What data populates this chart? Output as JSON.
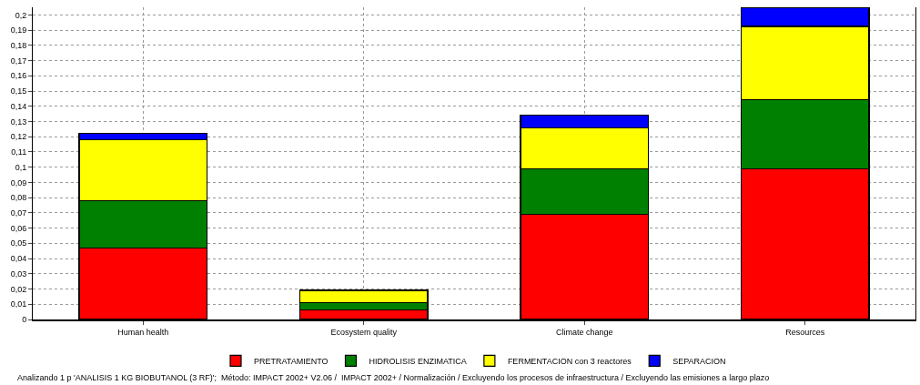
{
  "chart_data": {
    "type": "bar",
    "stacked": true,
    "categories": [
      "Human health",
      "Ecosystem quality",
      "Climate change",
      "Resources"
    ],
    "series": [
      {
        "name": "PRETRATAMIENTO",
        "color": "#ff0000",
        "values": [
          0.047,
          0.0061,
          0.069,
          0.099
        ]
      },
      {
        "name": "HIDROLISIS ENZIMATICA",
        "color": "#008000",
        "values": [
          0.031,
          0.0048,
          0.03,
          0.0455
        ]
      },
      {
        "name": "FERMENTACION con 3 reactores",
        "color": "#ffff00",
        "values": [
          0.04,
          0.0079,
          0.0267,
          0.048
        ]
      },
      {
        "name": "SEPARACION",
        "color": "#0000ff",
        "values": [
          0.004,
          0.0004,
          0.0085,
          0.012
        ]
      }
    ],
    "ylim": [
      0,
      0.205
    ],
    "yticks": [
      {
        "value": 0,
        "label": "0"
      },
      {
        "value": 0.01,
        "label": "0,01"
      },
      {
        "value": 0.02,
        "label": "0,02"
      },
      {
        "value": 0.03,
        "label": "0,03"
      },
      {
        "value": 0.04,
        "label": "0,04"
      },
      {
        "value": 0.05,
        "label": "0,05"
      },
      {
        "value": 0.06,
        "label": "0,06"
      },
      {
        "value": 0.07,
        "label": "0,07"
      },
      {
        "value": 0.08,
        "label": "0,08"
      },
      {
        "value": 0.09,
        "label": "0,09"
      },
      {
        "value": 0.1,
        "label": "0,1"
      },
      {
        "value": 0.11,
        "label": "0,11"
      },
      {
        "value": 0.12,
        "label": "0,12"
      },
      {
        "value": 0.13,
        "label": "0,13"
      },
      {
        "value": 0.14,
        "label": "0,14"
      },
      {
        "value": 0.15,
        "label": "0,15"
      },
      {
        "value": 0.16,
        "label": "0,16"
      },
      {
        "value": 0.17,
        "label": "0,17"
      },
      {
        "value": 0.18,
        "label": "0,18"
      },
      {
        "value": 0.19,
        "label": "0,19"
      },
      {
        "value": 0.2,
        "label": "0,2"
      }
    ],
    "grid": true,
    "legend": "bottom",
    "annotations": [
      "Analizando 1 p 'ANALISIS 1 KG BIOBUTANOL (3 RF)';  Método: IMPACT 2002+ V2.06 /  IMPACT 2002+ / Normalización / Excluyendo los procesos de infraestructura / Excluyendo las emisiones a largo plazo"
    ]
  }
}
